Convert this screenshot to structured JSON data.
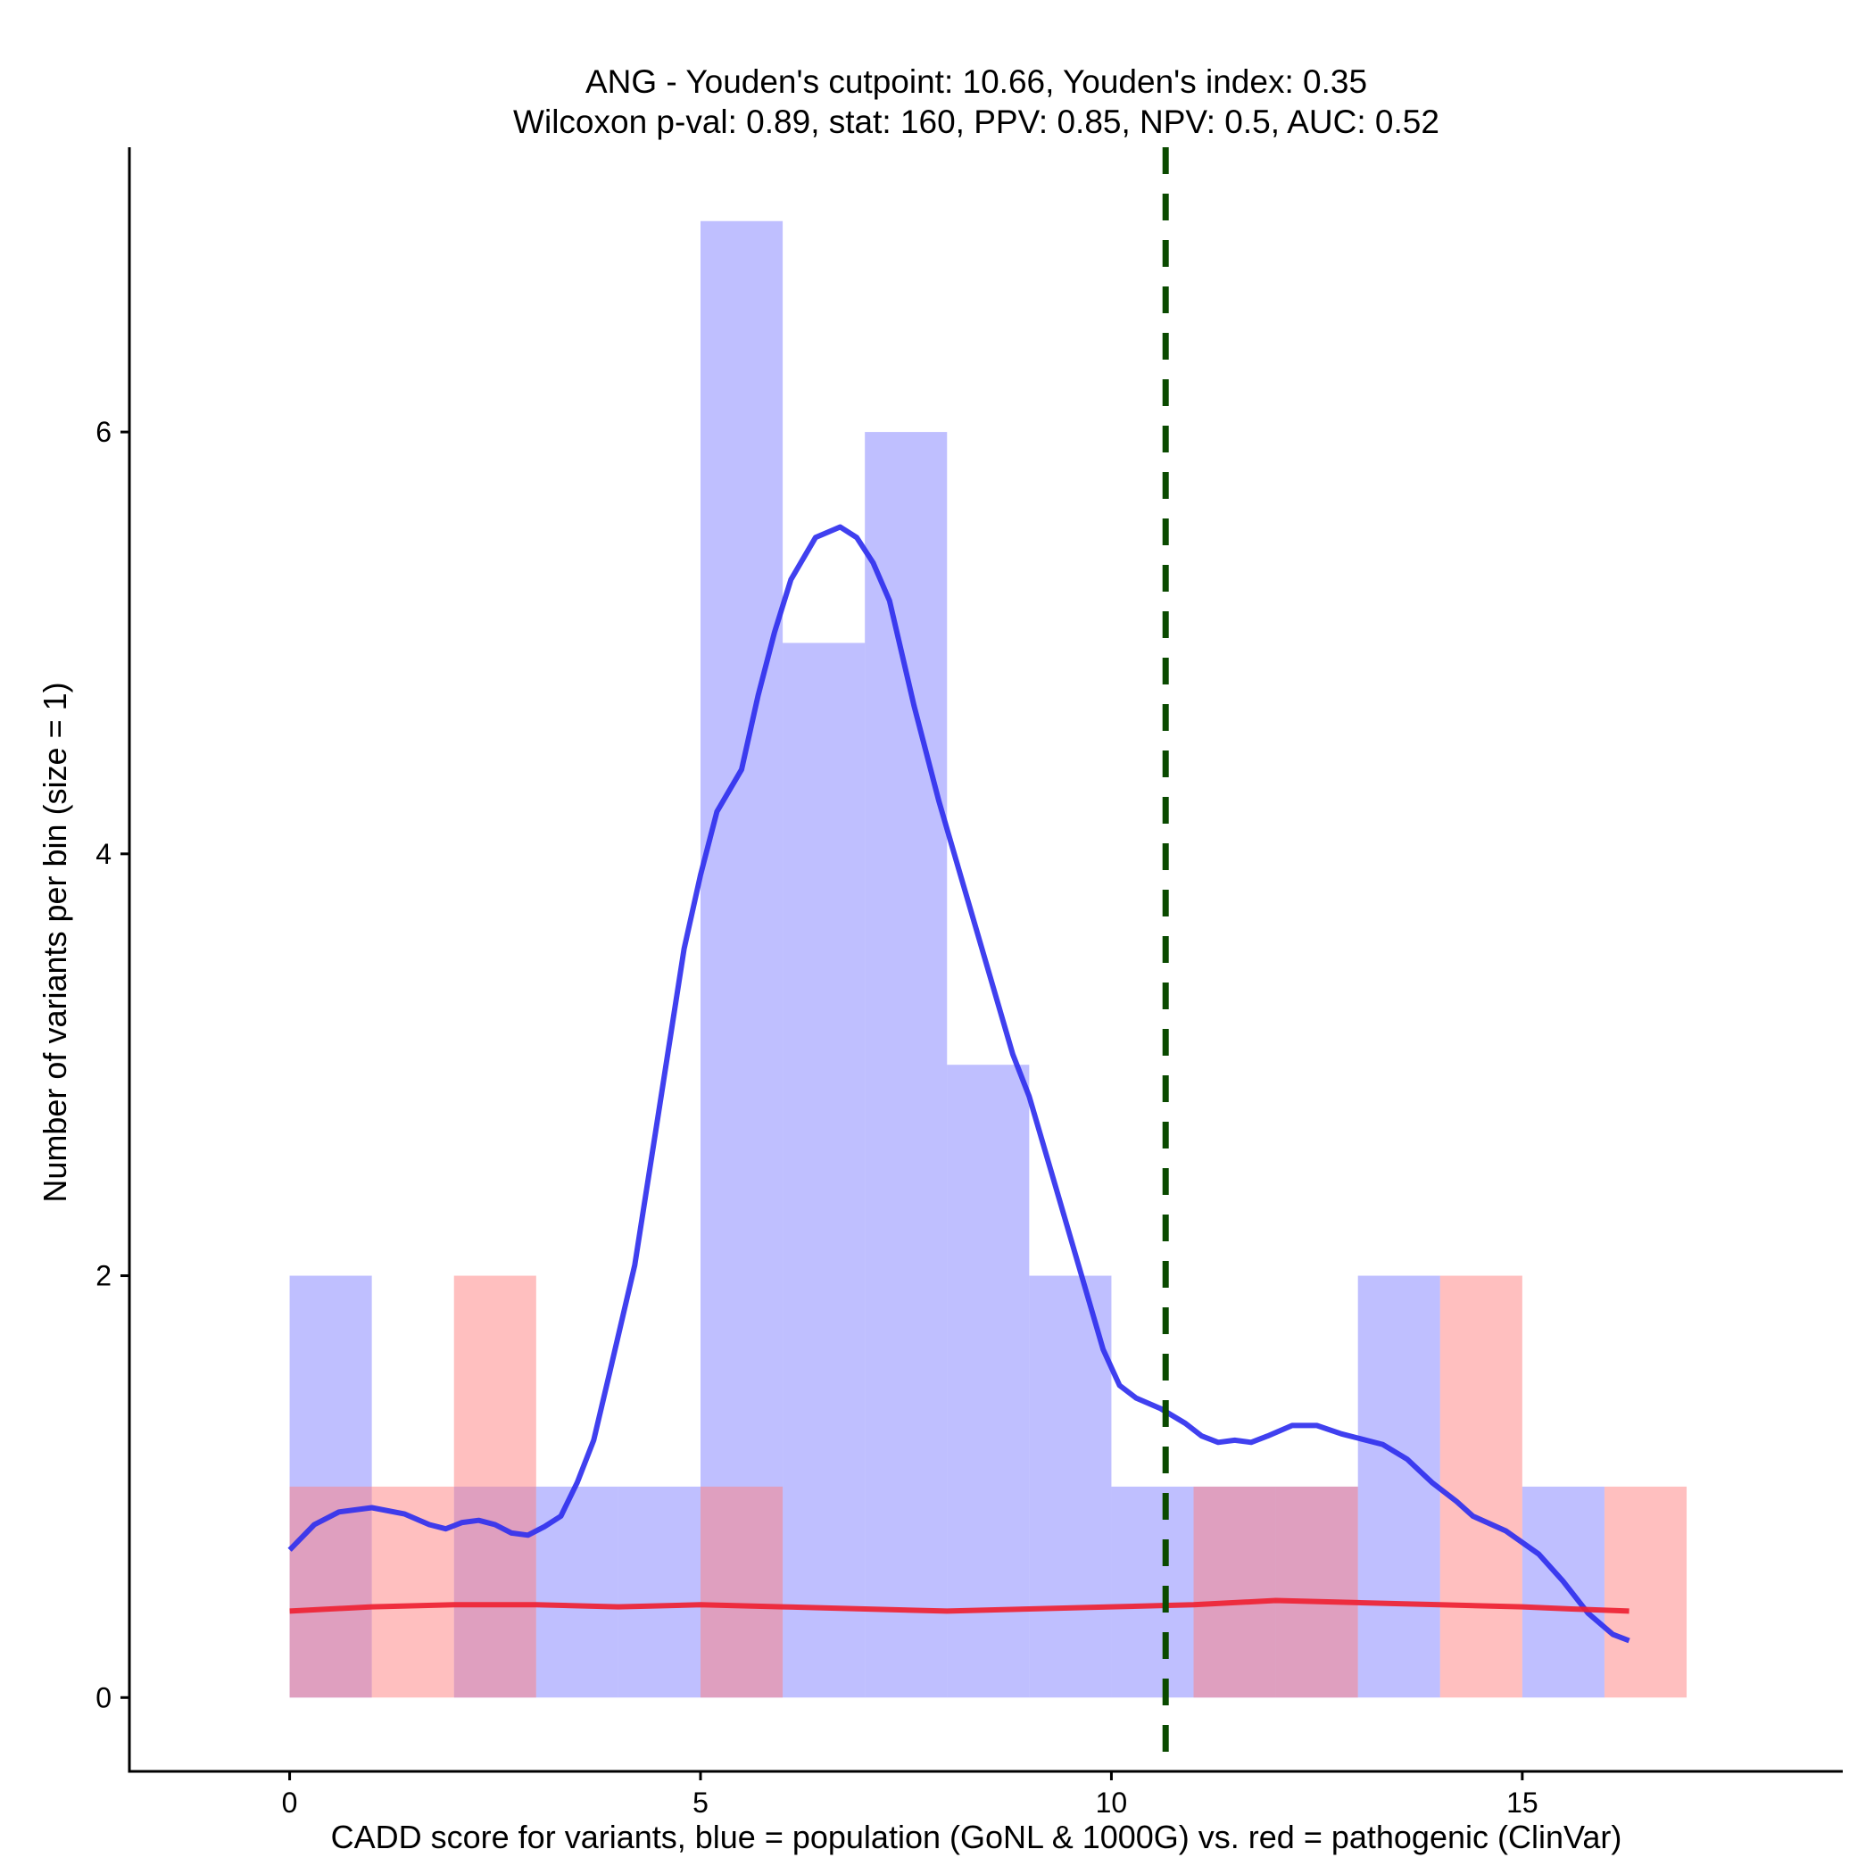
{
  "chart_data": {
    "type": "bar",
    "title_line1": "ANG - Youden's cutpoint: 10.66, Youden's index: 0.35",
    "title_line2": "Wilcoxon p-val: 0.89, stat: 160, PPV: 0.85, NPV: 0.5, AUC: 0.52",
    "xlabel": "CADD score for variants, blue = population (GoNL & 1000G) vs. red = pathogenic (ClinVar)",
    "ylabel": "Number of variants per bin (size = 1)",
    "xlim": [
      -1.95,
      18.9
    ],
    "ylim": [
      -0.35,
      7.35
    ],
    "x_ticks": [
      0,
      5,
      10,
      15
    ],
    "y_ticks": [
      0,
      2,
      4,
      6
    ],
    "bin_width": 1,
    "cutpoint": 10.66,
    "colors": {
      "population": "#8080ff",
      "pathogenic": "#ff8080",
      "population_line": "#3030ee",
      "pathogenic_line": "#ee2233",
      "cutpoint": "#0a4a00"
    },
    "series": [
      {
        "name": "population",
        "bins": [
          {
            "start": 0,
            "count": 2
          },
          {
            "start": 1,
            "count": 0
          },
          {
            "start": 2,
            "count": 1
          },
          {
            "start": 3,
            "count": 1
          },
          {
            "start": 4,
            "count": 1
          },
          {
            "start": 5,
            "count": 7
          },
          {
            "start": 6,
            "count": 5
          },
          {
            "start": 7,
            "count": 6
          },
          {
            "start": 8,
            "count": 3
          },
          {
            "start": 9,
            "count": 2
          },
          {
            "start": 10,
            "count": 1
          },
          {
            "start": 11,
            "count": 1
          },
          {
            "start": 12,
            "count": 1
          },
          {
            "start": 13,
            "count": 2
          },
          {
            "start": 14,
            "count": 0
          },
          {
            "start": 15,
            "count": 1
          },
          {
            "start": 16,
            "count": 0
          }
        ],
        "density": [
          [
            0,
            0.7
          ],
          [
            0.3,
            0.82
          ],
          [
            0.6,
            0.88
          ],
          [
            1,
            0.9
          ],
          [
            1.4,
            0.87
          ],
          [
            1.7,
            0.82
          ],
          [
            1.9,
            0.8
          ],
          [
            2.1,
            0.83
          ],
          [
            2.3,
            0.84
          ],
          [
            2.5,
            0.82
          ],
          [
            2.7,
            0.78
          ],
          [
            2.9,
            0.77
          ],
          [
            3.1,
            0.81
          ],
          [
            3.3,
            0.86
          ],
          [
            3.5,
            1.02
          ],
          [
            3.7,
            1.22
          ],
          [
            3.9,
            1.55
          ],
          [
            4.2,
            2.05
          ],
          [
            4.5,
            2.8
          ],
          [
            4.8,
            3.55
          ],
          [
            5.0,
            3.9
          ],
          [
            5.2,
            4.2
          ],
          [
            5.5,
            4.4
          ],
          [
            5.7,
            4.75
          ],
          [
            5.9,
            5.05
          ],
          [
            6.1,
            5.3
          ],
          [
            6.4,
            5.5
          ],
          [
            6.7,
            5.55
          ],
          [
            6.9,
            5.5
          ],
          [
            7.1,
            5.38
          ],
          [
            7.3,
            5.2
          ],
          [
            7.6,
            4.7
          ],
          [
            7.9,
            4.25
          ],
          [
            8.2,
            3.85
          ],
          [
            8.5,
            3.45
          ],
          [
            8.8,
            3.05
          ],
          [
            9.0,
            2.85
          ],
          [
            9.3,
            2.45
          ],
          [
            9.6,
            2.05
          ],
          [
            9.9,
            1.65
          ],
          [
            10.1,
            1.48
          ],
          [
            10.3,
            1.42
          ],
          [
            10.6,
            1.37
          ],
          [
            10.9,
            1.3
          ],
          [
            11.1,
            1.24
          ],
          [
            11.3,
            1.21
          ],
          [
            11.5,
            1.22
          ],
          [
            11.7,
            1.21
          ],
          [
            11.9,
            1.24
          ],
          [
            12.2,
            1.29
          ],
          [
            12.5,
            1.29
          ],
          [
            12.8,
            1.25
          ],
          [
            13.0,
            1.23
          ],
          [
            13.3,
            1.2
          ],
          [
            13.6,
            1.13
          ],
          [
            13.9,
            1.02
          ],
          [
            14.2,
            0.93
          ],
          [
            14.4,
            0.86
          ],
          [
            14.8,
            0.79
          ],
          [
            15.2,
            0.68
          ],
          [
            15.5,
            0.55
          ],
          [
            15.8,
            0.4
          ],
          [
            16.1,
            0.3
          ],
          [
            16.3,
            0.27
          ]
        ]
      },
      {
        "name": "pathogenic",
        "bins": [
          {
            "start": 0,
            "count": 1
          },
          {
            "start": 1,
            "count": 1
          },
          {
            "start": 2,
            "count": 2
          },
          {
            "start": 3,
            "count": 0
          },
          {
            "start": 4,
            "count": 0
          },
          {
            "start": 5,
            "count": 1
          },
          {
            "start": 6,
            "count": 0
          },
          {
            "start": 7,
            "count": 0
          },
          {
            "start": 8,
            "count": 0
          },
          {
            "start": 9,
            "count": 0
          },
          {
            "start": 10,
            "count": 0
          },
          {
            "start": 11,
            "count": 1
          },
          {
            "start": 12,
            "count": 1
          },
          {
            "start": 13,
            "count": 0
          },
          {
            "start": 14,
            "count": 2
          },
          {
            "start": 15,
            "count": 0
          },
          {
            "start": 16,
            "count": 1
          }
        ],
        "density": [
          [
            0,
            0.41
          ],
          [
            1,
            0.43
          ],
          [
            2,
            0.44
          ],
          [
            3,
            0.44
          ],
          [
            4,
            0.43
          ],
          [
            5,
            0.44
          ],
          [
            6,
            0.43
          ],
          [
            7,
            0.42
          ],
          [
            8,
            0.41
          ],
          [
            9,
            0.42
          ],
          [
            10,
            0.43
          ],
          [
            11,
            0.44
          ],
          [
            12,
            0.46
          ],
          [
            13,
            0.45
          ],
          [
            14,
            0.44
          ],
          [
            15,
            0.43
          ],
          [
            15.6,
            0.42
          ],
          [
            16.3,
            0.41
          ]
        ]
      }
    ]
  }
}
